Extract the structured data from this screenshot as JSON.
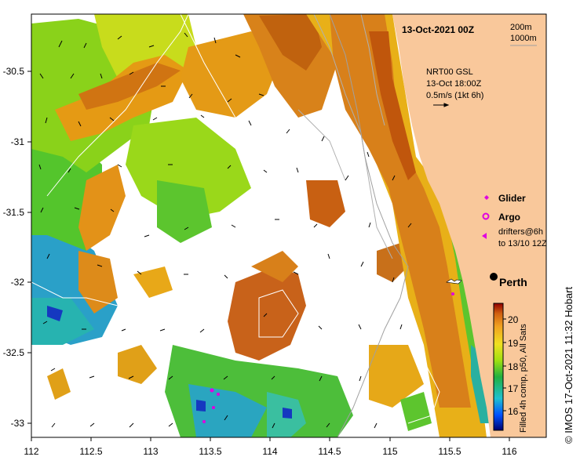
{
  "map": {
    "datetime_title": "13-Oct-2021 00Z",
    "isobath_legend": [
      "200m",
      "1000m"
    ],
    "current_info": [
      "NRT00 GSL",
      "13-Oct 18:00Z",
      "0.5m/s (1kt 6h)"
    ],
    "place_label": "Perth",
    "legend_items": [
      {
        "label": "Glider",
        "color": "#e000e0"
      },
      {
        "label": "Argo",
        "color": "#e000e0"
      },
      {
        "label": "drifters@6h",
        "color": "#e000e0"
      }
    ],
    "drifter_subtext": "to 13/10 12Z",
    "colorbar": {
      "title": "Filled 4h comp, p50, All Sats",
      "ticks": [
        "20",
        "19",
        "18",
        "17",
        "16"
      ],
      "min": 15.5,
      "max": 20.5
    },
    "credit": "© IMOS 17-Oct-2021 11:32 Hobart",
    "x_ticks": [
      "112",
      "112.5",
      "113",
      "113.5",
      "114",
      "114.5",
      "115",
      "115.5",
      "116"
    ],
    "y_ticks": [
      "-30.5",
      "-31",
      "-31.5",
      "-32",
      "-32.5",
      "-33"
    ],
    "colors": {
      "land": "#f9c89b",
      "warm": "#c0560c",
      "mid": "#e9a010",
      "cool": "#3dc52e",
      "cold": "#1f7fd0"
    }
  }
}
